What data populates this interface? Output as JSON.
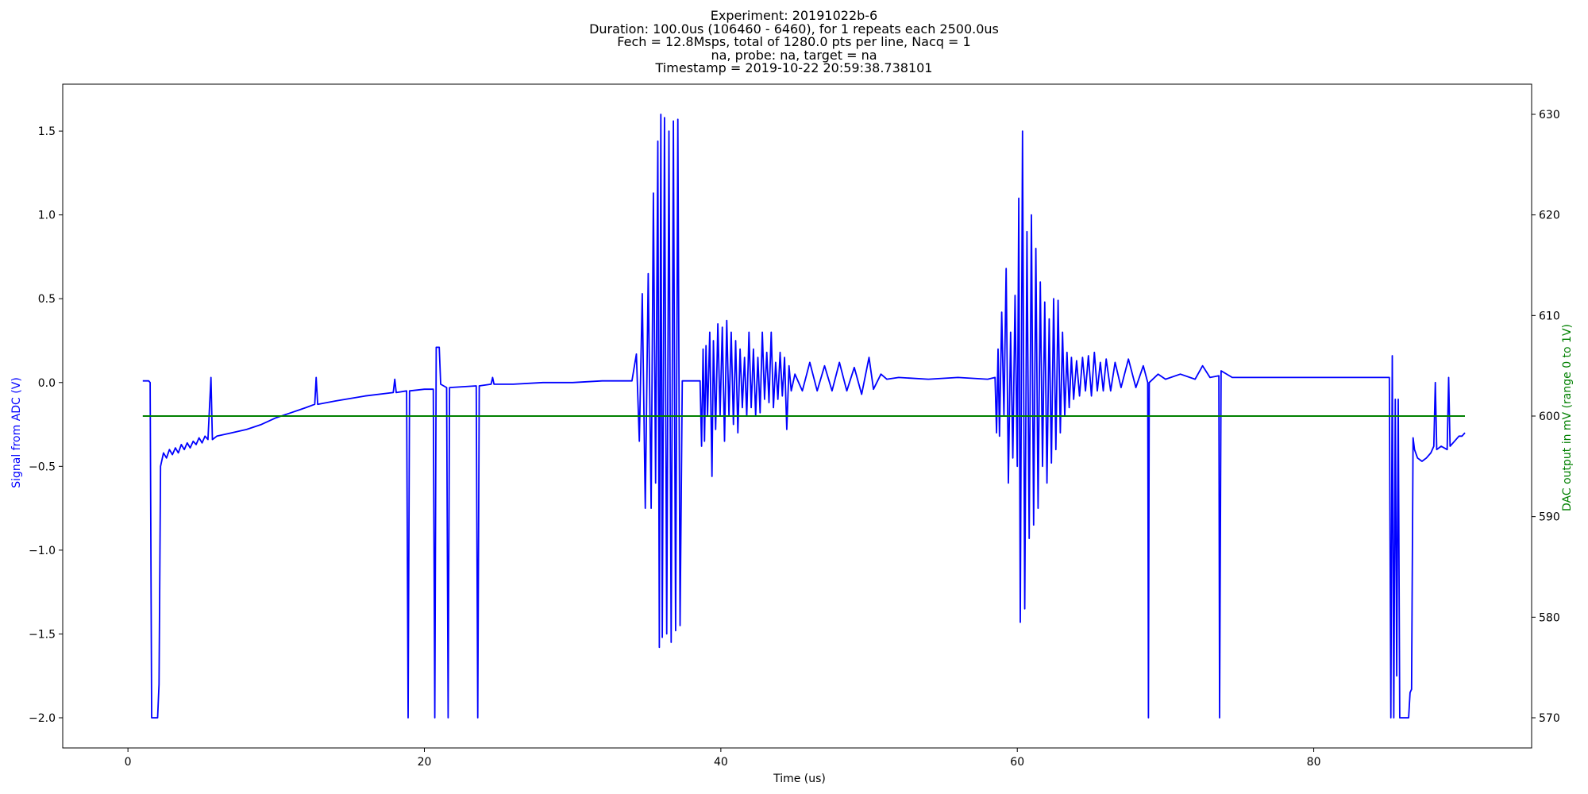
{
  "title_lines": [
    "Experiment: 20191022b-6",
    "Duration: 100.0us (106460 - 6460), for 1 repeats each 2500.0us",
    "Fech = 12.8Msps, total of 1280.0 pts per line, Nacq = 1",
    "na, probe: na, target = na",
    "Timestamp = 2019-10-22 20:59:38.738101"
  ],
  "chart_data": {
    "type": "line",
    "xlabel": "Time (us)",
    "ylabel_left": "Signal from ADC (V)",
    "ylabel_right": "DAC output in mV (range 0 to 1V)",
    "xlim": [
      -4.4,
      94.7
    ],
    "ylim_left": [
      -2.18,
      1.78
    ],
    "ylim_right": [
      567.0,
      633.0
    ],
    "x_ticks": [
      0,
      20,
      40,
      60,
      80
    ],
    "y_ticks_left": [
      -2.0,
      -1.5,
      -1.0,
      -0.5,
      0.0,
      0.5,
      1.0,
      1.5
    ],
    "y_ticks_right": [
      570,
      580,
      590,
      600,
      610,
      620,
      630
    ],
    "grid": false,
    "colors": {
      "adc": "#0000ff",
      "dac": "#008000",
      "left_label": "#0000ff",
      "right_label": "#008000"
    },
    "series": [
      {
        "axis": "left",
        "color": "#0000ff",
        "points": [
          [
            1.0,
            0.01
          ],
          [
            1.4,
            0.01
          ],
          [
            1.5,
            0.0
          ],
          [
            1.6,
            -2.0
          ],
          [
            1.9,
            -2.0
          ],
          [
            2.0,
            -2.0
          ],
          [
            2.1,
            -1.8
          ],
          [
            2.2,
            -0.5
          ],
          [
            2.4,
            -0.42
          ],
          [
            2.6,
            -0.45
          ],
          [
            2.8,
            -0.4
          ],
          [
            3.0,
            -0.43
          ],
          [
            3.2,
            -0.39
          ],
          [
            3.4,
            -0.42
          ],
          [
            3.6,
            -0.37
          ],
          [
            3.8,
            -0.4
          ],
          [
            4.0,
            -0.36
          ],
          [
            4.2,
            -0.39
          ],
          [
            4.4,
            -0.35
          ],
          [
            4.6,
            -0.37
          ],
          [
            4.8,
            -0.33
          ],
          [
            5.0,
            -0.36
          ],
          [
            5.2,
            -0.32
          ],
          [
            5.4,
            -0.34
          ],
          [
            5.6,
            0.03
          ],
          [
            5.7,
            -0.34
          ],
          [
            6.0,
            -0.32
          ],
          [
            7.0,
            -0.3
          ],
          [
            8.0,
            -0.28
          ],
          [
            9.0,
            -0.25
          ],
          [
            10.0,
            -0.21
          ],
          [
            11.0,
            -0.18
          ],
          [
            12.0,
            -0.15
          ],
          [
            12.6,
            -0.13
          ],
          [
            12.7,
            0.03
          ],
          [
            12.8,
            -0.13
          ],
          [
            14.0,
            -0.11
          ],
          [
            16.0,
            -0.08
          ],
          [
            17.9,
            -0.06
          ],
          [
            18.0,
            0.02
          ],
          [
            18.1,
            -0.06
          ],
          [
            18.8,
            -0.05
          ],
          [
            18.9,
            -2.0
          ],
          [
            19.0,
            -0.05
          ],
          [
            20.0,
            -0.04
          ],
          [
            20.6,
            -0.04
          ],
          [
            20.7,
            -2.0
          ],
          [
            20.8,
            0.21
          ],
          [
            20.9,
            0.21
          ],
          [
            21.0,
            0.21
          ],
          [
            21.1,
            -0.01
          ],
          [
            21.5,
            -0.03
          ],
          [
            21.6,
            -2.0
          ],
          [
            21.7,
            -0.03
          ],
          [
            23.5,
            -0.02
          ],
          [
            23.6,
            -2.0
          ],
          [
            23.7,
            -0.02
          ],
          [
            24.5,
            -0.01
          ],
          [
            24.6,
            0.03
          ],
          [
            24.7,
            -0.01
          ],
          [
            26.0,
            -0.01
          ],
          [
            28.0,
            0.0
          ],
          [
            30.0,
            0.0
          ],
          [
            32.0,
            0.01
          ],
          [
            34.0,
            0.01
          ],
          [
            34.3,
            0.17
          ],
          [
            34.5,
            -0.35
          ],
          [
            34.7,
            0.53
          ],
          [
            34.9,
            -0.75
          ],
          [
            35.1,
            0.65
          ],
          [
            35.3,
            -0.75
          ],
          [
            35.45,
            1.13
          ],
          [
            35.6,
            -0.6
          ],
          [
            35.75,
            1.44
          ],
          [
            35.85,
            -1.58
          ],
          [
            35.95,
            1.6
          ],
          [
            36.05,
            -1.52
          ],
          [
            36.2,
            1.58
          ],
          [
            36.35,
            -1.5
          ],
          [
            36.5,
            1.5
          ],
          [
            36.65,
            -1.55
          ],
          [
            36.8,
            1.56
          ],
          [
            36.95,
            -1.48
          ],
          [
            37.1,
            1.57
          ],
          [
            37.25,
            -1.45
          ],
          [
            37.4,
            0.01
          ],
          [
            38.0,
            0.01
          ],
          [
            38.6,
            0.01
          ],
          [
            38.7,
            -0.38
          ],
          [
            38.8,
            0.2
          ],
          [
            38.9,
            -0.35
          ],
          [
            39.0,
            0.22
          ],
          [
            39.1,
            -0.2
          ],
          [
            39.25,
            0.3
          ],
          [
            39.4,
            -0.56
          ],
          [
            39.5,
            0.25
          ],
          [
            39.65,
            -0.28
          ],
          [
            39.8,
            0.35
          ],
          [
            39.95,
            -0.2
          ],
          [
            40.1,
            0.33
          ],
          [
            40.25,
            -0.35
          ],
          [
            40.4,
            0.37
          ],
          [
            40.55,
            -0.2
          ],
          [
            40.7,
            0.3
          ],
          [
            40.85,
            -0.25
          ],
          [
            41.0,
            0.25
          ],
          [
            41.15,
            -0.3
          ],
          [
            41.3,
            0.2
          ],
          [
            41.45,
            -0.15
          ],
          [
            41.6,
            0.15
          ],
          [
            41.75,
            -0.2
          ],
          [
            41.9,
            0.3
          ],
          [
            42.05,
            -0.15
          ],
          [
            42.2,
            0.2
          ],
          [
            42.35,
            -0.2
          ],
          [
            42.5,
            0.15
          ],
          [
            42.65,
            -0.18
          ],
          [
            42.8,
            0.3
          ],
          [
            42.95,
            -0.1
          ],
          [
            43.1,
            0.18
          ],
          [
            43.25,
            -0.12
          ],
          [
            43.4,
            0.3
          ],
          [
            43.55,
            -0.15
          ],
          [
            43.7,
            0.12
          ],
          [
            43.85,
            -0.1
          ],
          [
            44.0,
            0.18
          ],
          [
            44.15,
            -0.08
          ],
          [
            44.3,
            0.15
          ],
          [
            44.45,
            -0.28
          ],
          [
            44.6,
            0.1
          ],
          [
            44.75,
            -0.05
          ],
          [
            45.0,
            0.05
          ],
          [
            45.5,
            -0.05
          ],
          [
            46.0,
            0.12
          ],
          [
            46.5,
            -0.05
          ],
          [
            47.0,
            0.1
          ],
          [
            47.5,
            -0.05
          ],
          [
            48.0,
            0.12
          ],
          [
            48.5,
            -0.05
          ],
          [
            49.0,
            0.09
          ],
          [
            49.5,
            -0.07
          ],
          [
            50.0,
            0.15
          ],
          [
            50.3,
            -0.04
          ],
          [
            50.8,
            0.05
          ],
          [
            51.2,
            0.02
          ],
          [
            52.0,
            0.03
          ],
          [
            54.0,
            0.02
          ],
          [
            56.0,
            0.03
          ],
          [
            58.0,
            0.02
          ],
          [
            58.5,
            0.03
          ],
          [
            58.6,
            -0.3
          ],
          [
            58.7,
            0.2
          ],
          [
            58.8,
            -0.32
          ],
          [
            58.95,
            0.42
          ],
          [
            59.1,
            -0.2
          ],
          [
            59.25,
            0.68
          ],
          [
            59.4,
            -0.6
          ],
          [
            59.55,
            0.3
          ],
          [
            59.7,
            -0.45
          ],
          [
            59.85,
            0.52
          ],
          [
            60.0,
            -0.5
          ],
          [
            60.1,
            1.1
          ],
          [
            60.2,
            -1.43
          ],
          [
            60.35,
            1.5
          ],
          [
            60.5,
            -1.35
          ],
          [
            60.65,
            0.9
          ],
          [
            60.8,
            -0.93
          ],
          [
            60.95,
            1.0
          ],
          [
            61.1,
            -0.85
          ],
          [
            61.25,
            0.8
          ],
          [
            61.4,
            -0.75
          ],
          [
            61.55,
            0.6
          ],
          [
            61.7,
            -0.5
          ],
          [
            61.85,
            0.48
          ],
          [
            62.0,
            -0.6
          ],
          [
            62.15,
            0.38
          ],
          [
            62.3,
            -0.48
          ],
          [
            62.45,
            0.5
          ],
          [
            62.6,
            -0.4
          ],
          [
            62.75,
            0.49
          ],
          [
            62.9,
            -0.3
          ],
          [
            63.05,
            0.3
          ],
          [
            63.2,
            -0.2
          ],
          [
            63.35,
            0.18
          ],
          [
            63.5,
            -0.15
          ],
          [
            63.65,
            0.15
          ],
          [
            63.8,
            -0.1
          ],
          [
            64.0,
            0.13
          ],
          [
            64.2,
            -0.08
          ],
          [
            64.4,
            0.15
          ],
          [
            64.6,
            -0.05
          ],
          [
            64.8,
            0.16
          ],
          [
            65.0,
            -0.08
          ],
          [
            65.2,
            0.18
          ],
          [
            65.4,
            -0.05
          ],
          [
            65.6,
            0.12
          ],
          [
            65.8,
            -0.05
          ],
          [
            66.0,
            0.14
          ],
          [
            66.3,
            -0.05
          ],
          [
            66.6,
            0.12
          ],
          [
            67.0,
            -0.03
          ],
          [
            67.5,
            0.14
          ],
          [
            68.0,
            -0.03
          ],
          [
            68.5,
            0.1
          ],
          [
            68.8,
            0.0
          ],
          [
            68.85,
            -2.0
          ],
          [
            68.9,
            0.0
          ],
          [
            69.5,
            0.05
          ],
          [
            70.0,
            0.02
          ],
          [
            71.0,
            0.05
          ],
          [
            72.0,
            0.02
          ],
          [
            72.5,
            0.1
          ],
          [
            73.0,
            0.03
          ],
          [
            73.6,
            0.04
          ],
          [
            73.65,
            -2.0
          ],
          [
            73.75,
            0.07
          ],
          [
            74.5,
            0.03
          ],
          [
            76.0,
            0.03
          ],
          [
            78.0,
            0.03
          ],
          [
            80.0,
            0.03
          ],
          [
            82.0,
            0.03
          ],
          [
            84.0,
            0.03
          ],
          [
            85.1,
            0.03
          ],
          [
            85.2,
            -2.0
          ],
          [
            85.3,
            0.16
          ],
          [
            85.4,
            -2.0
          ],
          [
            85.5,
            -0.1
          ],
          [
            85.6,
            -1.75
          ],
          [
            85.7,
            -0.1
          ],
          [
            85.8,
            -2.0
          ],
          [
            86.0,
            -2.0
          ],
          [
            86.4,
            -2.0
          ],
          [
            86.5,
            -1.85
          ],
          [
            86.6,
            -1.83
          ],
          [
            86.7,
            -0.33
          ],
          [
            86.8,
            -0.4
          ],
          [
            87.0,
            -0.45
          ],
          [
            87.3,
            -0.47
          ],
          [
            87.6,
            -0.45
          ],
          [
            87.9,
            -0.42
          ],
          [
            88.1,
            -0.38
          ],
          [
            88.2,
            0.0
          ],
          [
            88.3,
            -0.4
          ],
          [
            88.6,
            -0.38
          ],
          [
            89.0,
            -0.4
          ],
          [
            89.1,
            0.03
          ],
          [
            89.2,
            -0.38
          ],
          [
            89.5,
            -0.35
          ],
          [
            89.8,
            -0.32
          ],
          [
            90.0,
            -0.32
          ],
          [
            90.2,
            -0.3
          ]
        ]
      },
      {
        "axis": "right",
        "color": "#008000",
        "points": [
          [
            1.0,
            600.0
          ],
          [
            90.2,
            600.0
          ]
        ]
      }
    ]
  }
}
